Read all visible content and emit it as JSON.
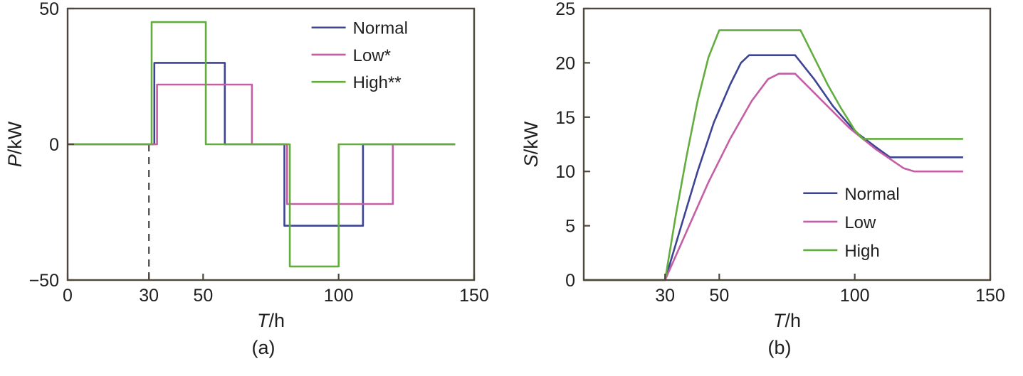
{
  "figure": {
    "background": "#ffffff",
    "text_color": "#1f1f1f"
  },
  "chart_data": [
    {
      "type": "line",
      "caption": "(a)",
      "xlabel": {
        "var": "T",
        "rest": "/h"
      },
      "ylabel": {
        "var": "P",
        "rest": "/kW"
      },
      "xlim": [
        0,
        150
      ],
      "ylim": [
        -50,
        50
      ],
      "xticks": [
        0,
        30,
        50,
        100,
        150
      ],
      "yticks": [
        -50,
        0,
        50
      ],
      "grid": false,
      "axis_color": "#4f463c",
      "dashed_vline": {
        "x": 30,
        "from": 0,
        "to": -50,
        "color": "#4a4a4a"
      },
      "legend": {
        "position": "top-right-inside",
        "x": 0.6,
        "y": 0.07,
        "dy": 0.1
      },
      "series": [
        {
          "name": "Normal",
          "color": "#3d4494",
          "points": [
            [
              0,
              0
            ],
            [
              32,
              0
            ],
            [
              32,
              30
            ],
            [
              58,
              30
            ],
            [
              58,
              0
            ],
            [
              80,
              0
            ],
            [
              80,
              -30
            ],
            [
              109,
              -30
            ],
            [
              109,
              0
            ],
            [
              143,
              0
            ]
          ]
        },
        {
          "name": "Low*",
          "color": "#c45fa5",
          "points": [
            [
              0,
              0
            ],
            [
              33,
              0
            ],
            [
              33,
              22
            ],
            [
              68,
              22
            ],
            [
              68,
              0
            ],
            [
              81,
              0
            ],
            [
              81,
              -22
            ],
            [
              120,
              -22
            ],
            [
              120,
              0
            ],
            [
              143,
              0
            ]
          ]
        },
        {
          "name": "High**",
          "color": "#63ad3f",
          "points": [
            [
              0,
              0
            ],
            [
              31,
              0
            ],
            [
              31,
              45
            ],
            [
              51,
              45
            ],
            [
              51,
              0
            ],
            [
              82,
              0
            ],
            [
              82,
              -45
            ],
            [
              100,
              -45
            ],
            [
              100,
              0
            ],
            [
              143,
              0
            ]
          ]
        }
      ]
    },
    {
      "type": "line",
      "caption": "(b)",
      "xlabel": {
        "var": "T",
        "rest": "/h"
      },
      "ylabel": {
        "var": "S",
        "rest": "/kW"
      },
      "xlim": [
        0,
        150
      ],
      "ylim": [
        0,
        25
      ],
      "xticks": [
        30,
        50,
        100,
        150
      ],
      "yticks": [
        0,
        5,
        10,
        15,
        20,
        25
      ],
      "grid": false,
      "axis_color": "#4f463c",
      "legend": {
        "position": "right-middle-inside",
        "x": 0.54,
        "y": 0.68,
        "dy": 0.105
      },
      "series": [
        {
          "name": "Normal",
          "color": "#3d4494",
          "points": [
            [
              0,
              0
            ],
            [
              30,
              0
            ],
            [
              36,
              5
            ],
            [
              42,
              10
            ],
            [
              48,
              14.5
            ],
            [
              54,
              18
            ],
            [
              58,
              20
            ],
            [
              61,
              20.7
            ],
            [
              78,
              20.7
            ],
            [
              85,
              18.5
            ],
            [
              92,
              16
            ],
            [
              100,
              13.7
            ],
            [
              108,
              12.2
            ],
            [
              113,
              11.3
            ],
            [
              140,
              11.3
            ]
          ]
        },
        {
          "name": "Low",
          "color": "#c45fa5",
          "points": [
            [
              0,
              0
            ],
            [
              30,
              0
            ],
            [
              38,
              4.5
            ],
            [
              46,
              9
            ],
            [
              54,
              13
            ],
            [
              62,
              16.5
            ],
            [
              68,
              18.5
            ],
            [
              72,
              19
            ],
            [
              78,
              19
            ],
            [
              88,
              16.5
            ],
            [
              98,
              14
            ],
            [
              108,
              12
            ],
            [
              118,
              10.3
            ],
            [
              122,
              10
            ],
            [
              140,
              10
            ]
          ]
        },
        {
          "name": "High",
          "color": "#63ad3f",
          "points": [
            [
              0,
              0
            ],
            [
              30,
              0
            ],
            [
              34,
              6
            ],
            [
              38,
              11.5
            ],
            [
              42,
              16.5
            ],
            [
              46,
              20.5
            ],
            [
              50,
              23
            ],
            [
              80,
              23
            ],
            [
              85,
              20.5
            ],
            [
              90,
              18
            ],
            [
              95,
              15.8
            ],
            [
              100,
              13.8
            ],
            [
              103,
              13
            ],
            [
              140,
              13
            ]
          ]
        }
      ]
    }
  ]
}
